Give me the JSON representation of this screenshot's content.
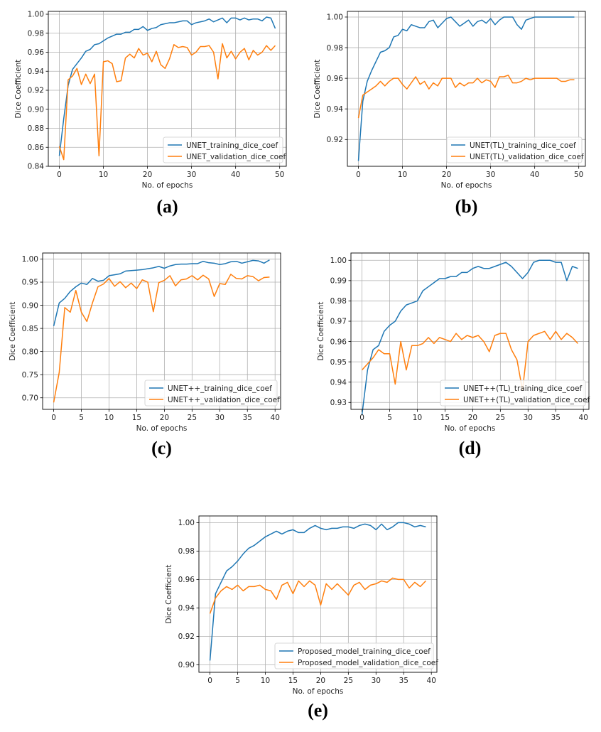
{
  "chart_data": [
    {
      "type": "line",
      "caption": "(a)",
      "xlabel": "No. of epochs",
      "ylabel": "Dice Coefficient",
      "xlim": [
        -2.5,
        51.5
      ],
      "ylim": [
        0.84,
        1.003
      ],
      "xticks": [
        0,
        10,
        20,
        30,
        40,
        50
      ],
      "yticks": [
        0.84,
        0.86,
        0.88,
        0.9,
        0.92,
        0.94,
        0.96,
        0.98,
        1.0
      ],
      "ytick_labels": [
        "0.84",
        "0.86",
        "0.88",
        "0.90",
        "0.92",
        "0.94",
        "0.96",
        "0.98",
        "1.00"
      ],
      "grid": true,
      "legend_position": "bottom-right",
      "series": [
        {
          "name": "UNET_training_dice_coef",
          "color": "#1f77b4",
          "values": [
            0.851,
            0.89,
            0.925,
            0.942,
            0.948,
            0.954,
            0.961,
            0.963,
            0.968,
            0.969,
            0.972,
            0.975,
            0.977,
            0.979,
            0.979,
            0.981,
            0.981,
            0.984,
            0.984,
            0.987,
            0.983,
            0.985,
            0.986,
            0.989,
            0.99,
            0.991,
            0.991,
            0.992,
            0.993,
            0.993,
            0.989,
            0.991,
            0.992,
            0.993,
            0.995,
            0.992,
            0.994,
            0.996,
            0.991,
            0.996,
            0.996,
            0.994,
            0.996,
            0.994,
            0.995,
            0.995,
            0.993,
            0.997,
            0.996,
            0.985
          ]
        },
        {
          "name": "UNET_validation_dice_coef",
          "color": "#ff7f0e",
          "values": [
            0.861,
            0.847,
            0.931,
            0.935,
            0.943,
            0.926,
            0.937,
            0.927,
            0.937,
            0.851,
            0.95,
            0.951,
            0.948,
            0.929,
            0.93,
            0.954,
            0.958,
            0.954,
            0.964,
            0.957,
            0.959,
            0.95,
            0.961,
            0.947,
            0.943,
            0.953,
            0.968,
            0.965,
            0.966,
            0.965,
            0.957,
            0.96,
            0.966,
            0.966,
            0.967,
            0.96,
            0.932,
            0.969,
            0.954,
            0.961,
            0.953,
            0.96,
            0.964,
            0.952,
            0.962,
            0.957,
            0.96,
            0.967,
            0.962,
            0.967
          ]
        }
      ]
    },
    {
      "type": "line",
      "caption": "(b)",
      "xlabel": "No. of epochs",
      "ylabel": "Dice Coefficient",
      "xlim": [
        -2.5,
        51.5
      ],
      "ylim": [
        0.9025,
        1.0037
      ],
      "xticks": [
        0,
        10,
        20,
        30,
        40,
        50
      ],
      "yticks": [
        0.92,
        0.94,
        0.96,
        0.98,
        1.0
      ],
      "ytick_labels": [
        "0.92",
        "0.94",
        "0.96",
        "0.98",
        "1.00"
      ],
      "grid": true,
      "legend_position": "bottom-right",
      "series": [
        {
          "name": "UNET(TL)_training_dice_coef",
          "color": "#1f77b4",
          "values": [
            0.906,
            0.945,
            0.958,
            0.965,
            0.971,
            0.977,
            0.978,
            0.98,
            0.987,
            0.988,
            0.992,
            0.991,
            0.995,
            0.994,
            0.993,
            0.993,
            0.997,
            0.998,
            0.993,
            0.996,
            0.999,
            1.0,
            0.997,
            0.994,
            0.996,
            0.998,
            0.994,
            0.997,
            0.998,
            0.996,
            0.999,
            0.995,
            0.998,
            1.0,
            1.0,
            1.0,
            0.995,
            0.992,
            0.998,
            0.999,
            1.0,
            1.0,
            1.0,
            1.0,
            1.0,
            1.0,
            1.0,
            1.0,
            1.0,
            1.0
          ]
        },
        {
          "name": "UNET(TL)_validation_dice_coef",
          "color": "#ff7f0e",
          "values": [
            0.934,
            0.949,
            0.951,
            0.953,
            0.955,
            0.958,
            0.955,
            0.958,
            0.96,
            0.96,
            0.956,
            0.953,
            0.957,
            0.961,
            0.956,
            0.958,
            0.953,
            0.957,
            0.955,
            0.96,
            0.96,
            0.96,
            0.954,
            0.957,
            0.955,
            0.957,
            0.957,
            0.96,
            0.957,
            0.959,
            0.958,
            0.954,
            0.961,
            0.961,
            0.962,
            0.957,
            0.957,
            0.958,
            0.96,
            0.959,
            0.96,
            0.96,
            0.96,
            0.96,
            0.96,
            0.96,
            0.958,
            0.958,
            0.959,
            0.959
          ]
        }
      ]
    },
    {
      "type": "line",
      "caption": "(c)",
      "xlabel": "No. of epochs",
      "ylabel": "Dice Coefficient",
      "xlim": [
        -2,
        41
      ],
      "ylim": [
        0.675,
        1.013
      ],
      "xticks": [
        0,
        5,
        10,
        15,
        20,
        25,
        30,
        35,
        40
      ],
      "yticks": [
        0.7,
        0.75,
        0.8,
        0.85,
        0.9,
        0.95,
        1.0
      ],
      "ytick_labels": [
        "0.70",
        "0.75",
        "0.80",
        "0.85",
        "0.90",
        "0.95",
        "1.00"
      ],
      "grid": true,
      "legend_position": "bottom-right",
      "series": [
        {
          "name": "UNET++_training_dice_coef",
          "color": "#1f77b4",
          "values": [
            0.855,
            0.905,
            0.915,
            0.93,
            0.94,
            0.948,
            0.945,
            0.958,
            0.952,
            0.954,
            0.964,
            0.966,
            0.968,
            0.974,
            0.975,
            0.976,
            0.977,
            0.979,
            0.981,
            0.984,
            0.98,
            0.985,
            0.988,
            0.989,
            0.989,
            0.99,
            0.99,
            0.995,
            0.992,
            0.991,
            0.988,
            0.99,
            0.994,
            0.995,
            0.991,
            0.994,
            0.997,
            0.996,
            0.991,
            0.998
          ]
        },
        {
          "name": "UNET++_validation_dice_coef",
          "color": "#ff7f0e",
          "values": [
            0.69,
            0.755,
            0.895,
            0.885,
            0.932,
            0.885,
            0.865,
            0.905,
            0.94,
            0.946,
            0.958,
            0.941,
            0.951,
            0.938,
            0.948,
            0.936,
            0.955,
            0.95,
            0.886,
            0.949,
            0.954,
            0.964,
            0.942,
            0.955,
            0.957,
            0.964,
            0.955,
            0.965,
            0.957,
            0.919,
            0.947,
            0.945,
            0.967,
            0.958,
            0.957,
            0.964,
            0.962,
            0.953,
            0.96,
            0.961
          ]
        }
      ]
    },
    {
      "type": "line",
      "caption": "(d)",
      "xlabel": "No. of epochs",
      "ylabel": "Dice Coefficient",
      "xlim": [
        -2,
        41
      ],
      "ylim": [
        0.9266,
        1.0036
      ],
      "xticks": [
        0,
        5,
        10,
        15,
        20,
        25,
        30,
        35,
        40
      ],
      "yticks": [
        0.93,
        0.94,
        0.95,
        0.96,
        0.97,
        0.98,
        0.99,
        1.0
      ],
      "ytick_labels": [
        "0.93",
        "0.94",
        "0.95",
        "0.96",
        "0.97",
        "0.98",
        "0.99",
        "1.00"
      ],
      "grid": true,
      "legend_position": "bottom-right",
      "series": [
        {
          "name": "UNET++(TL)_training_dice_coef",
          "color": "#1f77b4",
          "values": [
            0.924,
            0.946,
            0.956,
            0.958,
            0.965,
            0.968,
            0.97,
            0.975,
            0.978,
            0.979,
            0.98,
            0.985,
            0.987,
            0.989,
            0.991,
            0.991,
            0.992,
            0.992,
            0.994,
            0.994,
            0.996,
            0.997,
            0.996,
            0.996,
            0.997,
            0.998,
            0.999,
            0.997,
            0.994,
            0.991,
            0.994,
            0.999,
            1.0,
            1.0,
            1.0,
            0.999,
            0.999,
            0.99,
            0.997,
            0.996
          ]
        },
        {
          "name": "UNET++(TL)_validation_dice_coef",
          "color": "#ff7f0e",
          "values": [
            0.946,
            0.949,
            0.952,
            0.956,
            0.954,
            0.954,
            0.939,
            0.96,
            0.946,
            0.958,
            0.958,
            0.959,
            0.962,
            0.959,
            0.962,
            0.961,
            0.96,
            0.964,
            0.961,
            0.963,
            0.962,
            0.963,
            0.96,
            0.955,
            0.963,
            0.964,
            0.964,
            0.956,
            0.951,
            0.936,
            0.96,
            0.963,
            0.964,
            0.965,
            0.961,
            0.965,
            0.961,
            0.964,
            0.962,
            0.959
          ]
        }
      ]
    },
    {
      "type": "line",
      "caption": "(e)",
      "xlabel": "No. of epochs",
      "ylabel": "Dice Coefficient",
      "xlim": [
        -2,
        41
      ],
      "ylim": [
        0.8947,
        1.0047
      ],
      "xticks": [
        0,
        5,
        10,
        15,
        20,
        25,
        30,
        35,
        40
      ],
      "yticks": [
        0.9,
        0.92,
        0.94,
        0.96,
        0.98,
        1.0
      ],
      "ytick_labels": [
        "0.90",
        "0.92",
        "0.94",
        "0.96",
        "0.98",
        "1.00"
      ],
      "grid": true,
      "legend_position": "bottom-right",
      "series": [
        {
          "name": "Proposed_model_training_dice_coef",
          "color": "#1f77b4",
          "values": [
            0.903,
            0.95,
            0.958,
            0.966,
            0.969,
            0.973,
            0.978,
            0.982,
            0.984,
            0.987,
            0.99,
            0.992,
            0.994,
            0.992,
            0.994,
            0.995,
            0.993,
            0.993,
            0.996,
            0.998,
            0.996,
            0.995,
            0.996,
            0.996,
            0.997,
            0.997,
            0.996,
            0.998,
            0.999,
            0.998,
            0.995,
            0.999,
            0.995,
            0.997,
            1.0,
            1.0,
            0.999,
            0.997,
            0.998,
            0.997
          ]
        },
        {
          "name": "Proposed_model_validation_dice_coef",
          "color": "#ff7f0e",
          "values": [
            0.936,
            0.947,
            0.952,
            0.955,
            0.953,
            0.956,
            0.952,
            0.955,
            0.955,
            0.956,
            0.953,
            0.952,
            0.946,
            0.956,
            0.958,
            0.95,
            0.959,
            0.955,
            0.959,
            0.956,
            0.942,
            0.957,
            0.953,
            0.957,
            0.953,
            0.949,
            0.956,
            0.958,
            0.953,
            0.956,
            0.957,
            0.959,
            0.958,
            0.961,
            0.96,
            0.96,
            0.954,
            0.958,
            0.955,
            0.959
          ]
        }
      ]
    }
  ]
}
